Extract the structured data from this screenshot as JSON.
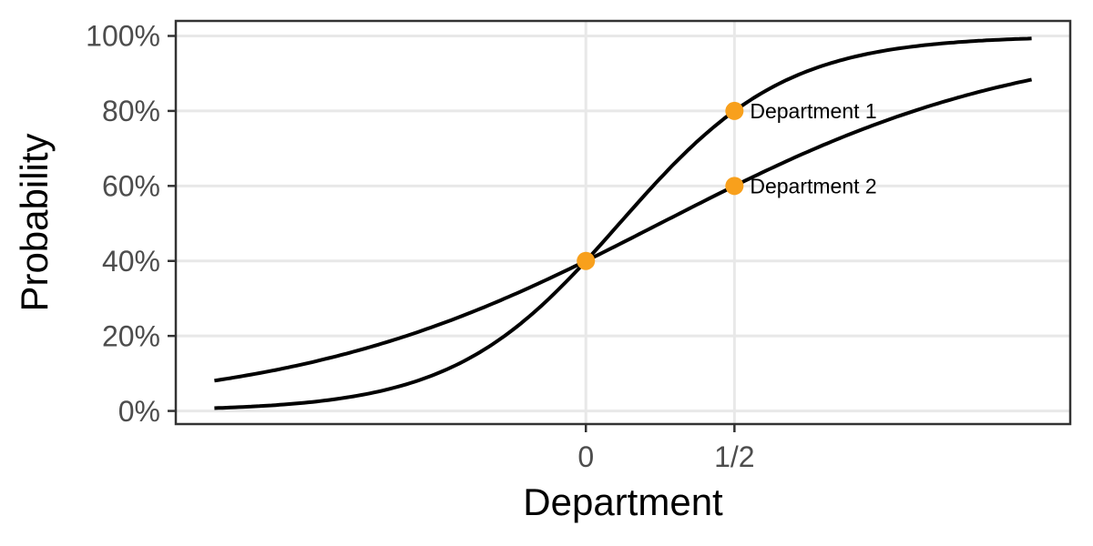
{
  "chart_data": {
    "type": "line",
    "title": "",
    "xlabel": "Department",
    "ylabel": "Probability",
    "xlim": [
      -1.38,
      1.63
    ],
    "ylim": [
      -0.035,
      1.04
    ],
    "grid": "major-only",
    "legend": "none",
    "x_ticks": [
      {
        "value": 0,
        "label": "0"
      },
      {
        "value": 0.5,
        "label": "1/2"
      }
    ],
    "y_ticks": [
      {
        "value": 0,
        "label": "0%"
      },
      {
        "value": 0.2,
        "label": "20%"
      },
      {
        "value": 0.4,
        "label": "40%"
      },
      {
        "value": 0.6,
        "label": "60%"
      },
      {
        "value": 0.8,
        "label": "80%"
      },
      {
        "value": 1,
        "label": "100%"
      }
    ],
    "series": [
      {
        "name": "Department 1",
        "model": "logistic",
        "intercept": -0.4055,
        "slope": 3.5835,
        "x_range": [
          -1.25,
          1.5
        ],
        "anchor_points": [
          {
            "x": 0,
            "p": 0.4
          },
          {
            "x": 0.5,
            "p": 0.8
          }
        ]
      },
      {
        "name": "Department 2",
        "model": "logistic",
        "intercept": -0.4055,
        "slope": 1.6219,
        "x_range": [
          -1.25,
          1.5
        ],
        "anchor_points": [
          {
            "x": 0,
            "p": 0.4
          },
          {
            "x": 0.5,
            "p": 0.6
          }
        ]
      }
    ],
    "points": [
      {
        "x": 0,
        "y": 0.4,
        "label": ""
      },
      {
        "x": 0.5,
        "y": 0.8,
        "label": "Department 1"
      },
      {
        "x": 0.5,
        "y": 0.6,
        "label": "Department 2"
      }
    ],
    "colors": {
      "curve": "#000000",
      "point": "#F8A01C",
      "grid": "#E8E8E8",
      "panel_border": "#333333",
      "tick": "#333333",
      "tick_label": "#4D4D4D",
      "axis_title": "#000000",
      "annotation": "#000000",
      "background": "#FFFFFF"
    }
  }
}
